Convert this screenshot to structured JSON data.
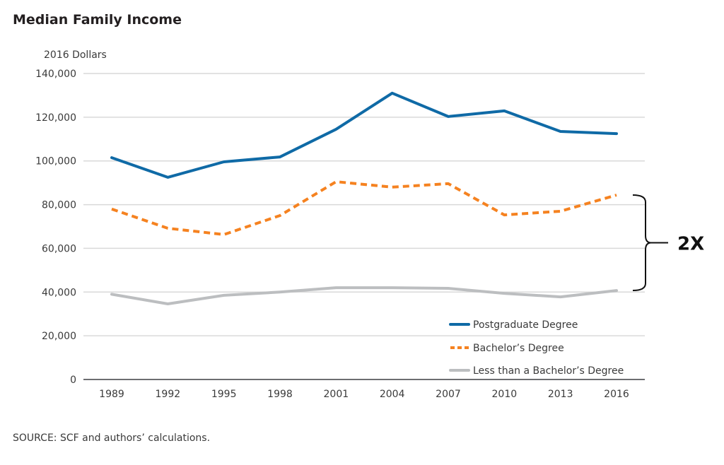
{
  "chart_data": {
    "type": "line",
    "title": "Median Family Income",
    "ylabel": "2016 Dollars",
    "xlabel": "",
    "x": [
      "1989",
      "1992",
      "1995",
      "1998",
      "2001",
      "2004",
      "2007",
      "2010",
      "2013",
      "2016"
    ],
    "ylim": [
      0,
      140000
    ],
    "yticks": [
      0,
      20000,
      40000,
      60000,
      80000,
      100000,
      120000,
      140000
    ],
    "ytick_labels": [
      "0",
      "20,000",
      "40,000",
      "60,000",
      "80,000",
      "100,000",
      "120,000",
      "140,000"
    ],
    "grid": true,
    "legend_position": "bottom-right",
    "series": [
      {
        "name": "Postgraduate Degree",
        "color": "#0f6aa6",
        "style": "solid",
        "values": [
          101500,
          92500,
          99600,
          101800,
          114500,
          131000,
          120300,
          122900,
          113500,
          112500
        ]
      },
      {
        "name": "Bachelor’s Degree",
        "color": "#f58220",
        "style": "dashed",
        "values": [
          78000,
          69200,
          66300,
          75000,
          90500,
          88000,
          89600,
          75300,
          77000,
          84400
        ]
      },
      {
        "name": "Less than a Bachelor’s Degree",
        "color": "#bcbec0",
        "style": "solid",
        "values": [
          39000,
          34600,
          38500,
          40000,
          42000,
          42000,
          41700,
          39400,
          37800,
          40700
        ]
      }
    ],
    "annotation": {
      "label": "2X",
      "from_series": "Less than a Bachelor’s Degree",
      "to_series": "Bachelor’s Degree",
      "year": "2016"
    },
    "source": "SOURCE: SCF and authors’ calculations."
  }
}
